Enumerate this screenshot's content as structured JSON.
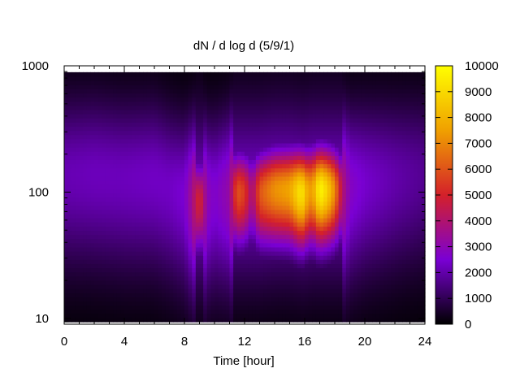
{
  "chart_data": {
    "type": "heatmap",
    "title": "dN / d log d (5/9/1)",
    "xlabel": "Time [hour]",
    "ylabel": "",
    "x_ticks": [
      0,
      4,
      8,
      12,
      16,
      20,
      24
    ],
    "xlim": [
      0,
      24
    ],
    "y_scale": "log",
    "y_ticks": [
      10,
      100,
      1000
    ],
    "ylim": [
      9,
      1000
    ],
    "colorbar": {
      "ticks": [
        0,
        1000,
        2000,
        3000,
        4000,
        5000,
        6000,
        7000,
        8000,
        9000,
        10000
      ],
      "range": [
        0,
        10000
      ],
      "colors": [
        "#000000",
        "#7a00d4",
        "#d4202a",
        "#f0a000",
        "#ffff00"
      ]
    },
    "z_profile": {
      "x_hour": [
        0,
        2,
        4,
        6,
        7,
        8,
        8.5,
        9,
        9.5,
        10,
        11,
        11.5,
        12,
        12.5,
        13,
        14,
        15,
        15.8,
        16,
        16.5,
        17,
        17.5,
        18,
        18.5,
        19,
        20,
        22,
        24
      ],
      "peak_value": [
        2100,
        2200,
        2200,
        2300,
        2300,
        2500,
        3600,
        5200,
        3000,
        2600,
        3200,
        6000,
        5500,
        3600,
        6000,
        7200,
        7600,
        9500,
        8200,
        7300,
        9800,
        8800,
        7000,
        4000,
        2800,
        2400,
        2000,
        1700
      ],
      "peak_diameter": [
        140,
        140,
        130,
        130,
        110,
        95,
        90,
        85,
        90,
        95,
        100,
        100,
        100,
        100,
        100,
        105,
        105,
        100,
        100,
        105,
        105,
        105,
        105,
        105,
        110,
        120,
        130,
        140
      ]
    }
  }
}
